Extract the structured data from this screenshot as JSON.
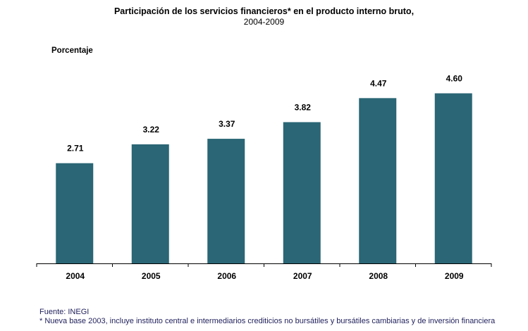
{
  "chart_data": {
    "type": "bar",
    "title": "Participación de los servicios financieros* en el producto interno bruto,",
    "subtitle": "2004-2009",
    "ylabel": "Porcentaje",
    "xlabel": "",
    "categories": [
      "2004",
      "2005",
      "2006",
      "2007",
      "2008",
      "2009"
    ],
    "values": [
      2.71,
      3.22,
      3.37,
      3.82,
      4.47,
      4.6
    ],
    "value_labels": [
      "2.71",
      "3.22",
      "3.37",
      "3.82",
      "4.47",
      "4.60"
    ],
    "ylim": [
      0,
      5.6
    ],
    "grid": false,
    "legend": "none",
    "bar_color": "#2A6675",
    "axis_color": "#000000"
  },
  "footer": {
    "source": "Fuente: INEGI",
    "note": "* Nueva base 2003, incluye  instituto central e intermediarios crediticios no bursátiles  y bursátiles cambiarias y de inversión financiera"
  }
}
